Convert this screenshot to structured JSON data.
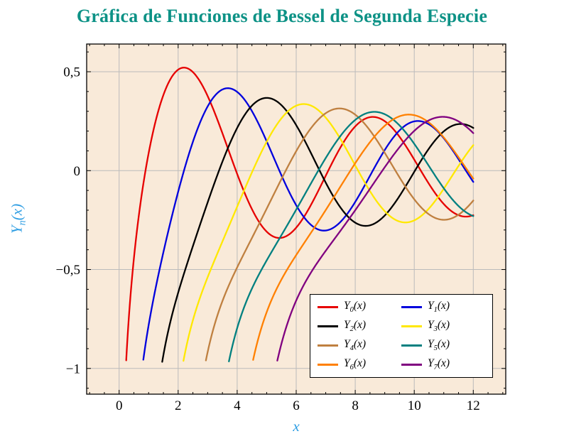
{
  "title": {
    "text": "Gráfica de Funciones de Bessel de Segunda Especie",
    "color": "#0d9286"
  },
  "legend": {
    "entries": [
      {
        "base": "Y",
        "sub": "0",
        "rest": "(x)",
        "color": "#e60000"
      },
      {
        "base": "Y",
        "sub": "1",
        "rest": "(x)",
        "color": "#0000dd"
      },
      {
        "base": "Y",
        "sub": "2",
        "rest": "(x)",
        "color": "#000000"
      },
      {
        "base": "Y",
        "sub": "3",
        "rest": "(x)",
        "color": "#ffe800"
      },
      {
        "base": "Y",
        "sub": "4",
        "rest": "(x)",
        "color": "#bf8040"
      },
      {
        "base": "Y",
        "sub": "5",
        "rest": "(x)",
        "color": "#008080"
      },
      {
        "base": "Y",
        "sub": "6",
        "rest": "(x)",
        "color": "#ff8000"
      },
      {
        "base": "Y",
        "sub": "7",
        "rest": "(x)",
        "color": "#800080"
      }
    ]
  },
  "chart_data": {
    "type": "line",
    "title": "Gráfica de Funciones de Bessel de Segunda Especie",
    "xlabel": "x",
    "ylabel": "Y_n(x)",
    "ylabel_parts": {
      "base": "Y",
      "sub": "n",
      "rest": "(x)"
    },
    "xlim": [
      -1.1,
      13.1
    ],
    "ylim": [
      -1.13,
      0.64
    ],
    "x_major_ticks": [
      0,
      2,
      4,
      6,
      8,
      10,
      12
    ],
    "x_tick_labels": [
      "0",
      "2",
      "4",
      "6",
      "8",
      "10",
      "12"
    ],
    "y_major_ticks": [
      0.5,
      0,
      -0.5,
      -1
    ],
    "y_tick_labels": [
      "0,5",
      "0",
      "−0,5",
      "−1"
    ],
    "x_minor_step": 0.5,
    "y_minor_step": 0.1,
    "grid": "major",
    "grid_color": "#bbbbbb",
    "plot_background": "#f9ead9",
    "axis_label_color": "#2f9ee3",
    "legend_position": "south east",
    "sampling": {
      "generator": "BesselY(order, x)",
      "step": 0.02,
      "x_max": 12,
      "clip_y_min": -0.97
    },
    "series": [
      {
        "name": "Y_0(x)",
        "order": 0,
        "color": "#e60000",
        "x_start": 0.24,
        "sample_points": {
          "x": [
            0.25,
            1,
            2,
            3,
            4,
            5,
            6,
            7,
            8,
            9,
            10,
            11,
            12
          ],
          "y": [
            -0.93,
            0.088,
            0.51,
            0.377,
            -0.017,
            -0.309,
            -0.288,
            -0.026,
            0.224,
            0.25,
            0.056,
            -0.169,
            -0.225
          ]
        }
      },
      {
        "name": "Y_1(x)",
        "order": 1,
        "color": "#0000dd",
        "x_start": 0.81,
        "sample_points": {
          "x": [
            0.81,
            1,
            2,
            3,
            4,
            5,
            6,
            7,
            8,
            9,
            10,
            11,
            12
          ],
          "y": [
            -0.97,
            -0.781,
            -0.107,
            0.325,
            0.398,
            0.148,
            -0.175,
            -0.303,
            -0.158,
            0.104,
            0.249,
            0.164,
            -0.057
          ]
        }
      },
      {
        "name": "Y_2(x)",
        "order": 2,
        "color": "#000000",
        "x_start": 1.47,
        "sample_points": {
          "x": [
            1.5,
            2,
            3,
            4,
            5,
            6,
            7,
            8,
            9,
            10,
            11,
            12
          ],
          "y": [
            -0.932,
            -0.617,
            -0.16,
            0.216,
            0.368,
            0.23,
            -0.061,
            -0.263,
            -0.227,
            -0.006,
            0.199,
            0.216
          ]
        }
      },
      {
        "name": "Y_3(x)",
        "order": 3,
        "color": "#ffe800",
        "x_start": 2.26,
        "sample_points": {
          "x": [
            3,
            4,
            5,
            6,
            7,
            8,
            9,
            10,
            11,
            12
          ],
          "y": [
            -0.539,
            -0.182,
            0.146,
            0.328,
            0.268,
            0.027,
            -0.205,
            -0.251,
            -0.092,
            0.129
          ]
        }
      },
      {
        "name": "Y_4(x)",
        "order": 4,
        "color": "#bf8040",
        "x_start": 3.01,
        "sample_points": {
          "x": [
            3,
            4,
            5,
            6,
            7,
            8,
            9,
            10,
            11,
            12
          ],
          "y": [
            -0.917,
            -0.489,
            -0.192,
            0.098,
            0.287,
            0.283,
            0.089,
            -0.145,
            -0.249,
            -0.151
          ]
        }
      },
      {
        "name": "Y_5(x)",
        "order": 5,
        "color": "#008080",
        "x_start": 3.74,
        "sample_points": {
          "x": [
            4,
            5,
            6,
            7,
            8,
            9,
            10,
            11,
            12
          ],
          "y": [
            -0.796,
            -0.454,
            -0.197,
            0.064,
            0.256,
            0.285,
            0.136,
            -0.089,
            -0.23
          ]
        }
      },
      {
        "name": "Y_6(x)",
        "order": 6,
        "color": "#ff8000",
        "x_start": 4.46,
        "sample_points": {
          "x": [
            5,
            6,
            7,
            8,
            9,
            10,
            11,
            12
          ],
          "y": [
            -0.715,
            -0.427,
            -0.199,
            0.038,
            0.227,
            0.28,
            0.167,
            -0.04
          ]
        }
      },
      {
        "name": "Y_7(x)",
        "order": 7,
        "color": "#800080",
        "x_start": 5.18,
        "sample_points": {
          "x": [
            6,
            7,
            8,
            9,
            10,
            11,
            12
          ],
          "y": [
            -0.657,
            -0.406,
            -0.2,
            0.017,
            0.201,
            0.272,
            0.19
          ]
        }
      }
    ]
  }
}
